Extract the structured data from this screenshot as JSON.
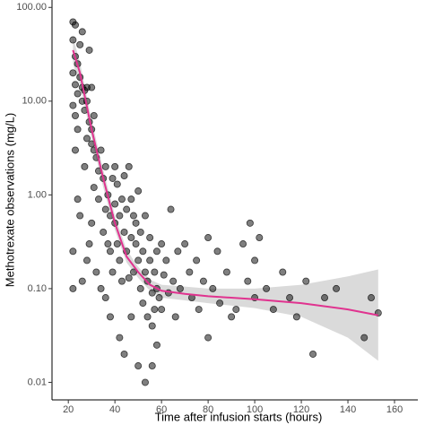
{
  "chart_data": {
    "type": "scatter",
    "x_label": "Time after infusion starts (hours)",
    "y_label": "Methotrexate observations (mg/L)",
    "log_y": true,
    "grid": false,
    "xlim": [
      13,
      170
    ],
    "ylim": [
      0.0065,
      120
    ],
    "xticks": [
      20,
      40,
      60,
      80,
      100,
      120,
      140,
      160
    ],
    "yticks": [
      {
        "value": 100,
        "label": "100.00"
      },
      {
        "value": 10,
        "label": "10.00"
      },
      {
        "value": 1,
        "label": "1.00"
      },
      {
        "value": 0.1,
        "label": "0.10"
      },
      {
        "value": 0.01,
        "label": "0.01"
      }
    ],
    "series": [
      {
        "color": "#000000",
        "x": [
          22,
          23,
          22,
          23,
          24,
          22,
          23,
          25,
          24,
          22,
          23,
          24,
          25,
          26,
          26,
          27,
          28,
          29,
          26,
          22,
          24,
          25,
          23,
          27,
          28,
          29,
          30,
          30,
          31,
          32,
          33,
          30,
          33,
          34,
          35,
          35,
          36,
          36,
          37,
          37,
          38,
          38,
          39,
          39,
          40,
          40,
          40,
          41,
          41,
          42,
          42,
          43,
          43,
          44,
          44,
          45,
          45,
          46,
          46,
          47,
          47,
          48,
          48,
          49,
          49,
          50,
          50,
          51,
          51,
          52,
          52,
          53,
          53,
          54,
          54,
          55,
          55,
          56,
          56,
          57,
          57,
          58,
          58,
          59,
          60,
          60,
          61,
          62,
          63,
          64,
          65,
          66,
          67,
          68,
          70,
          72,
          73,
          75,
          76,
          78,
          80,
          80,
          82,
          84,
          85,
          88,
          90,
          92,
          95,
          97,
          98,
          100,
          100,
          102,
          105,
          108,
          112,
          115,
          118,
          122,
          125,
          130,
          135,
          147,
          150,
          153,
          22,
          26,
          29,
          34,
          38,
          44,
          47,
          50,
          53,
          56,
          58,
          42,
          36,
          32,
          28,
          28,
          27,
          31,
          30,
          31
        ],
        "values": [
          70,
          65,
          45,
          30,
          25,
          20,
          15,
          40,
          12,
          9,
          7,
          5,
          18,
          14,
          10,
          13,
          14,
          35,
          55,
          0.25,
          0.9,
          0.6,
          3,
          2,
          4,
          6,
          3.5,
          0.5,
          1.2,
          2.5,
          1.8,
          5,
          0.9,
          3,
          1.5,
          0.4,
          0.7,
          2,
          0.3,
          1,
          0.25,
          0.6,
          1.5,
          0.15,
          0.5,
          0.8,
          2,
          0.3,
          1.3,
          0.2,
          0.6,
          0.9,
          0.12,
          0.4,
          1.6,
          0.25,
          0.7,
          0.13,
          2,
          0.35,
          0.9,
          0.6,
          0.15,
          0.3,
          0.5,
          0.2,
          1.1,
          0.1,
          0.4,
          0.07,
          0.25,
          0.15,
          0.6,
          0.05,
          0.12,
          0.2,
          0.35,
          0.09,
          0.04,
          0.15,
          0.06,
          0.1,
          0.25,
          0.08,
          0.3,
          0.06,
          0.14,
          0.2,
          0.09,
          0.7,
          0.12,
          0.05,
          0.25,
          0.1,
          0.3,
          0.15,
          0.08,
          0.2,
          0.06,
          0.12,
          0.35,
          0.03,
          0.1,
          0.25,
          0.07,
          0.15,
          0.05,
          0.06,
          0.3,
          0.12,
          0.5,
          0.2,
          0.08,
          0.35,
          0.1,
          0.06,
          0.15,
          0.08,
          0.05,
          0.12,
          0.02,
          0.08,
          0.1,
          0.03,
          0.08,
          0.055,
          0.1,
          0.12,
          0.3,
          0.1,
          0.05,
          0.02,
          0.05,
          0.015,
          0.01,
          0.015,
          0.025,
          0.03,
          0.08,
          0.15,
          0.2,
          10,
          8,
          7,
          14,
          3
        ]
      }
    ],
    "smooth": {
      "color": "#e0338f",
      "band_color": "#d3d3d3",
      "x": [
        22,
        25,
        30,
        35,
        40,
        45,
        50,
        55,
        60,
        70,
        80,
        100,
        120,
        140,
        153
      ],
      "values": [
        35,
        20,
        5,
        1.5,
        0.5,
        0.22,
        0.15,
        0.11,
        0.095,
        0.088,
        0.083,
        0.077,
        0.07,
        0.06,
        0.052
      ],
      "lower": [
        25,
        15,
        4,
        1.2,
        0.42,
        0.19,
        0.13,
        0.095,
        0.08,
        0.075,
        0.07,
        0.062,
        0.05,
        0.03,
        0.017
      ],
      "upper": [
        48,
        26,
        6.2,
        1.85,
        0.6,
        0.26,
        0.17,
        0.125,
        0.11,
        0.105,
        0.1,
        0.1,
        0.11,
        0.135,
        0.16
      ]
    }
  }
}
